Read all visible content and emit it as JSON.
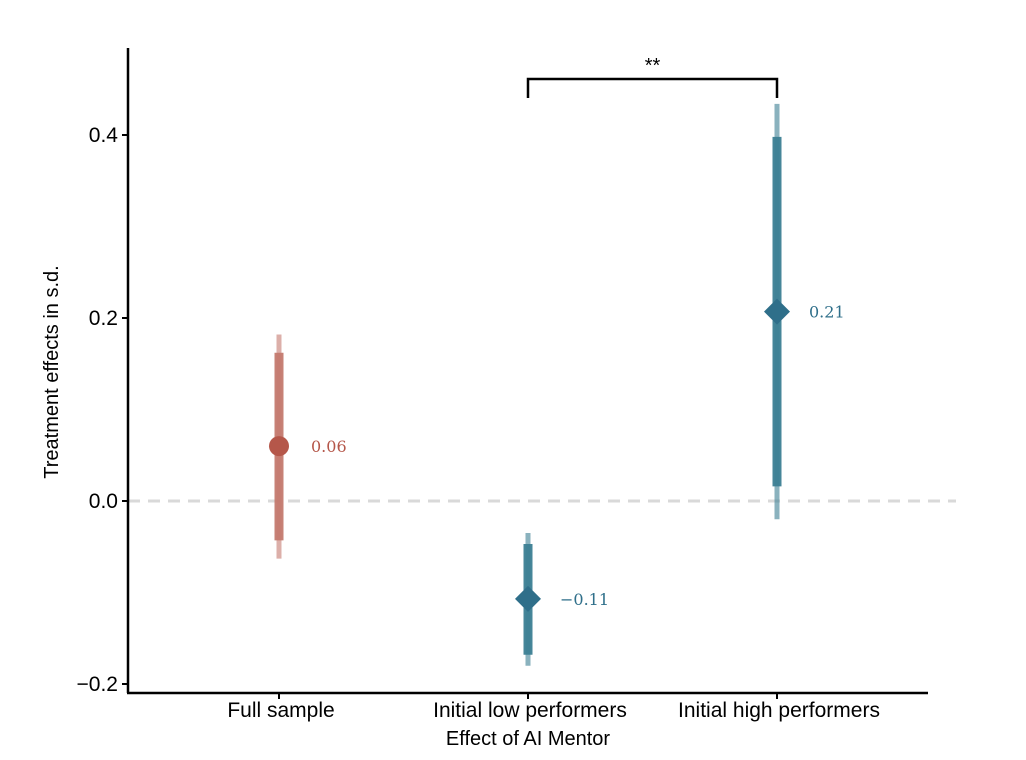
{
  "chart_data": {
    "type": "errorbar",
    "xlabel": "Effect of AI Mentor",
    "ylabel": "Treatment effects in s.d.",
    "ylim": [
      -0.2,
      0.48
    ],
    "y_ticks": [
      -0.2,
      0.0,
      0.2,
      0.4
    ],
    "y_tick_labels": [
      "−0.2",
      "0.0",
      "0.2",
      "0.4"
    ],
    "categories": [
      "Full sample",
      "Initial low performers",
      "Initial high performers"
    ],
    "reference_line": {
      "y": 0.0,
      "style": "dashed",
      "color": "#d9d9d9"
    },
    "points": [
      {
        "category": "Full sample",
        "estimate": 0.06,
        "label": "0.06",
        "ci_inner": [
          -0.043,
          0.162
        ],
        "ci_outer": [
          -0.063,
          0.182
        ],
        "marker": "circle",
        "color": "#b5574a",
        "ci_color": "#c47a6f"
      },
      {
        "category": "Initial low performers",
        "estimate": -0.107,
        "label": "−0.11",
        "ci_inner": [
          -0.168,
          -0.047
        ],
        "ci_outer": [
          -0.18,
          -0.035
        ],
        "marker": "diamond",
        "color": "#2f6f8a",
        "ci_color": "#3c7f93"
      },
      {
        "category": "Initial high performers",
        "estimate": 0.207,
        "label": "0.21",
        "ci_inner": [
          0.016,
          0.398
        ],
        "ci_outer": [
          -0.02,
          0.434
        ],
        "marker": "diamond",
        "color": "#2f6f8a",
        "ci_color": "#3c7f93"
      }
    ],
    "significance": {
      "from": "Initial low performers",
      "to": "Initial high performers",
      "label": "**"
    }
  }
}
